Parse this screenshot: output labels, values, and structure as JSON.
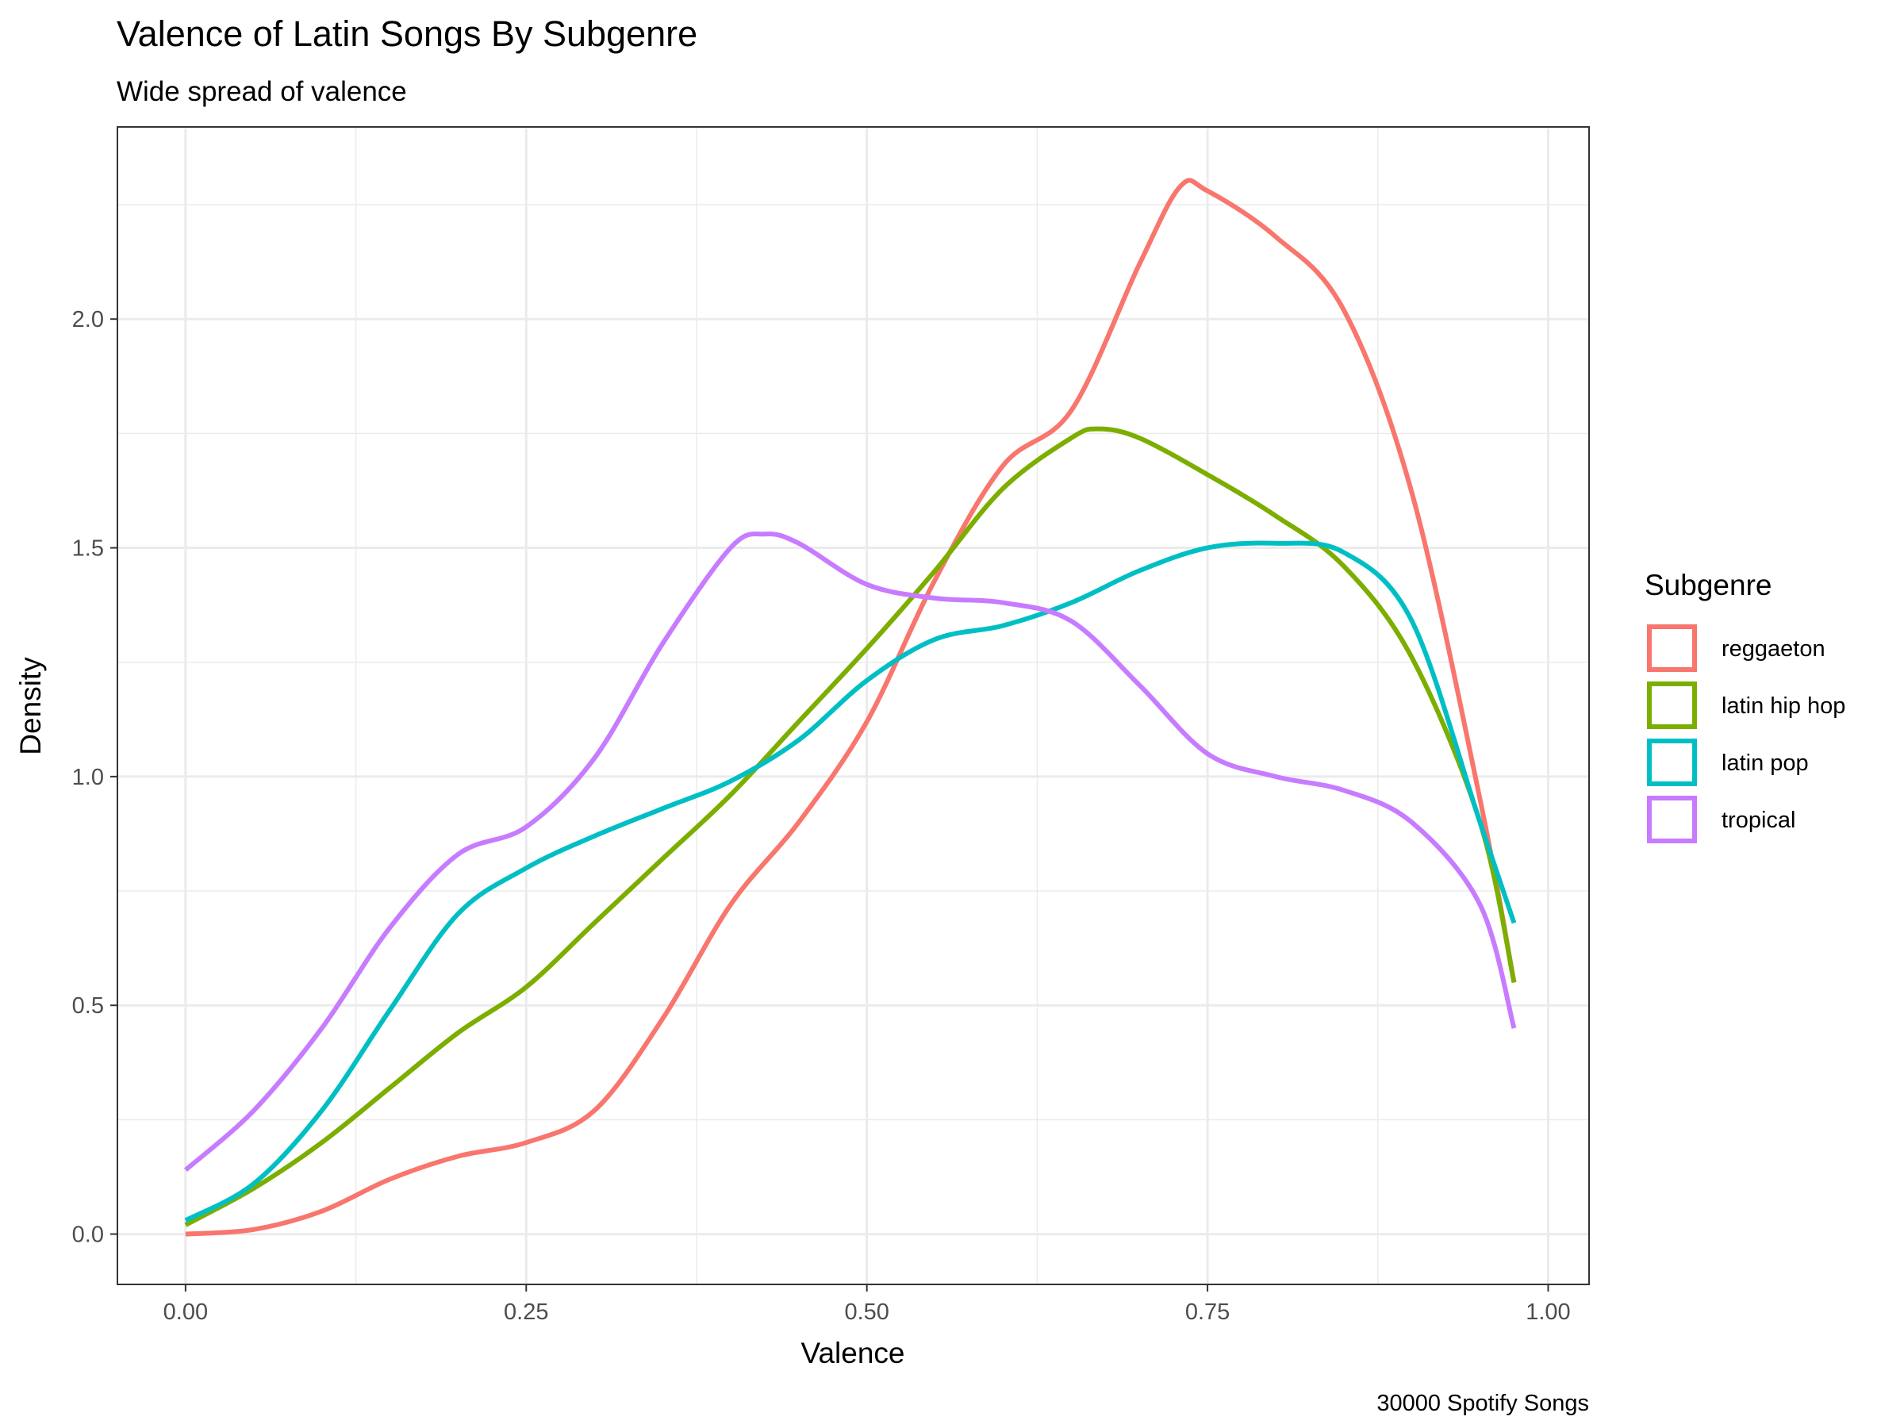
{
  "chart_data": {
    "type": "line",
    "title": "Valence of Latin Songs By Subgenre",
    "subtitle": "Wide spread of valence",
    "xlabel": "Valence",
    "ylabel": "Density",
    "caption": "30000 Spotify Songs",
    "xlim": [
      -0.05,
      1.03
    ],
    "ylim": [
      -0.11,
      2.42
    ],
    "x_ticks": [
      0.0,
      0.25,
      0.5,
      0.75,
      1.0
    ],
    "x_tick_labels": [
      "0.00",
      "0.25",
      "0.50",
      "0.75",
      "1.00"
    ],
    "y_ticks": [
      0.0,
      0.5,
      1.0,
      1.5,
      2.0
    ],
    "y_tick_labels": [
      "0.0",
      "0.5",
      "1.0",
      "1.5",
      "2.0"
    ],
    "grid": true,
    "legend": {
      "title": "Subgenre",
      "position": "right"
    },
    "series": [
      {
        "name": "reggaeton",
        "color": "#F8766D",
        "x": [
          0.0,
          0.05,
          0.1,
          0.15,
          0.2,
          0.25,
          0.3,
          0.35,
          0.4,
          0.45,
          0.5,
          0.55,
          0.6,
          0.65,
          0.7,
          0.73,
          0.75,
          0.8,
          0.85,
          0.9,
          0.95,
          0.975
        ],
        "y": [
          0.0,
          0.01,
          0.05,
          0.12,
          0.17,
          0.2,
          0.27,
          0.47,
          0.72,
          0.9,
          1.12,
          1.43,
          1.68,
          1.8,
          2.12,
          2.29,
          2.28,
          2.18,
          2.02,
          1.62,
          0.95,
          0.55
        ]
      },
      {
        "name": "latin hip hop",
        "color": "#7CAE00",
        "x": [
          0.0,
          0.05,
          0.1,
          0.15,
          0.2,
          0.25,
          0.3,
          0.35,
          0.4,
          0.45,
          0.5,
          0.55,
          0.6,
          0.65,
          0.67,
          0.7,
          0.75,
          0.8,
          0.85,
          0.9,
          0.95,
          0.975
        ],
        "y": [
          0.02,
          0.1,
          0.2,
          0.32,
          0.44,
          0.54,
          0.68,
          0.82,
          0.96,
          1.12,
          1.28,
          1.45,
          1.63,
          1.74,
          1.76,
          1.74,
          1.66,
          1.57,
          1.46,
          1.26,
          0.9,
          0.55
        ]
      },
      {
        "name": "latin pop",
        "color": "#00BFC4",
        "x": [
          0.0,
          0.05,
          0.1,
          0.15,
          0.2,
          0.25,
          0.3,
          0.35,
          0.4,
          0.45,
          0.5,
          0.55,
          0.6,
          0.65,
          0.7,
          0.75,
          0.8,
          0.85,
          0.9,
          0.95,
          0.975
        ],
        "y": [
          0.03,
          0.11,
          0.27,
          0.49,
          0.7,
          0.8,
          0.87,
          0.93,
          0.99,
          1.08,
          1.21,
          1.3,
          1.33,
          1.38,
          1.45,
          1.5,
          1.51,
          1.49,
          1.34,
          0.9,
          0.68
        ]
      },
      {
        "name": "tropical",
        "color": "#C77CFF",
        "x": [
          0.0,
          0.05,
          0.1,
          0.15,
          0.2,
          0.25,
          0.3,
          0.35,
          0.4,
          0.425,
          0.45,
          0.5,
          0.55,
          0.6,
          0.65,
          0.7,
          0.75,
          0.8,
          0.85,
          0.9,
          0.95,
          0.975
        ],
        "y": [
          0.14,
          0.27,
          0.45,
          0.67,
          0.83,
          0.89,
          1.04,
          1.29,
          1.5,
          1.53,
          1.51,
          1.42,
          1.39,
          1.38,
          1.34,
          1.2,
          1.05,
          1.0,
          0.97,
          0.9,
          0.72,
          0.45
        ]
      }
    ]
  }
}
